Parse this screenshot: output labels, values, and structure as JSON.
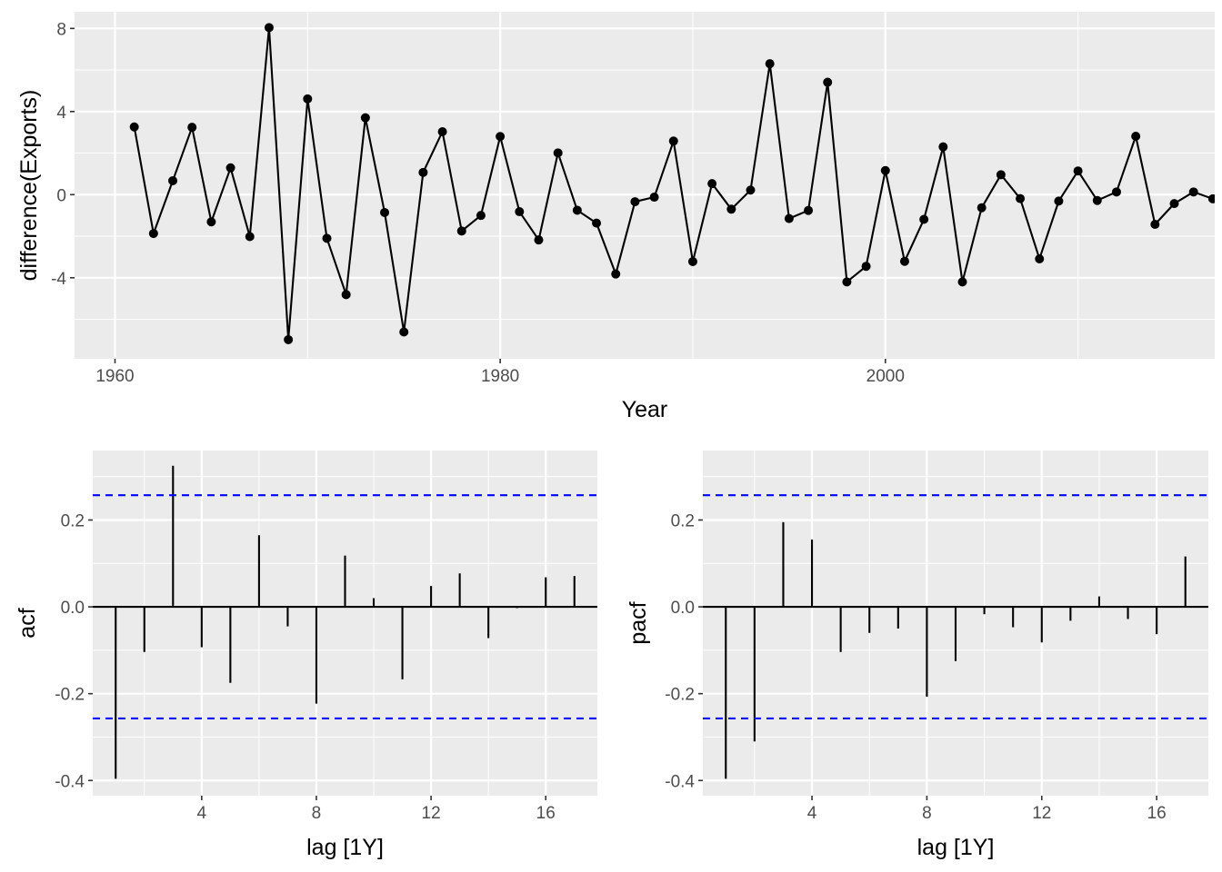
{
  "chart_data": [
    {
      "type": "line",
      "xlabel": "Year",
      "ylabel": "difference(Exports)",
      "xlim": [
        1957.9,
        2017.1
      ],
      "ylim": [
        -7.9,
        8.8
      ],
      "xticks": [
        1960,
        1980,
        2000
      ],
      "xtick_labels": [
        "1960",
        "1980",
        "2000"
      ],
      "yticks": [
        8,
        4,
        0,
        -4
      ],
      "ytick_labels": [
        "8",
        "4",
        "0",
        "-4"
      ],
      "grid": true,
      "markers": true,
      "series": [
        {
          "x": [
            1961,
            1962,
            1963,
            1964,
            1965,
            1966,
            1967,
            1968,
            1969,
            1970,
            1971,
            1972,
            1973,
            1974,
            1975,
            1976,
            1977,
            1978,
            1979,
            1980,
            1981,
            1982,
            1983,
            1984,
            1985,
            1986,
            1987,
            1988,
            1989,
            1990,
            1991,
            1992,
            1993,
            1994,
            1995,
            1996,
            1997,
            1998,
            1999,
            2000,
            2001,
            2002,
            2003,
            2004,
            2005,
            2006,
            2007,
            2008,
            2009,
            2010,
            2011,
            2012,
            2013,
            2014,
            2015,
            2016,
            2017
          ],
          "values": [
            3.26,
            -1.87,
            0.67,
            3.24,
            -1.31,
            1.29,
            -2.02,
            8.04,
            -6.98,
            4.61,
            -2.1,
            -4.81,
            3.7,
            -0.86,
            -6.61,
            1.07,
            3.03,
            -1.75,
            -1.0,
            2.8,
            -0.82,
            -2.18,
            2.01,
            -0.75,
            -1.37,
            -3.82,
            -0.34,
            -0.12,
            2.58,
            -3.22,
            0.53,
            -0.7,
            0.22,
            6.3,
            -1.15,
            -0.76,
            5.41,
            -4.2,
            -3.45,
            1.16,
            -3.21,
            -1.19,
            2.3,
            -4.2,
            -0.63,
            0.96,
            -0.19,
            -3.09,
            -0.31,
            1.14,
            -0.28,
            0.13,
            2.81,
            -1.43,
            -0.43,
            0.13,
            -0.2
          ]
        }
      ]
    },
    {
      "type": "bar",
      "xlabel": "lag [1Y]",
      "ylabel": "acf",
      "xlim": [
        0.2,
        17.8
      ],
      "ylim": [
        -0.435,
        0.36
      ],
      "xticks": [
        4,
        8,
        12,
        16
      ],
      "xtick_labels": [
        "4",
        "8",
        "12",
        "16"
      ],
      "yticks": [
        0.2,
        0.0,
        -0.2,
        -0.4
      ],
      "ytick_labels": [
        "0.2",
        "0.0",
        "-0.2",
        "-0.4"
      ],
      "grid": true,
      "ci": [
        0.257,
        -0.257
      ],
      "ci_color": "#0000ff",
      "series": [
        {
          "x": [
            1,
            2,
            3,
            4,
            5,
            6,
            7,
            8,
            9,
            10,
            11,
            12,
            13,
            14,
            15,
            16,
            17
          ],
          "values": [
            -0.396,
            -0.104,
            0.325,
            -0.093,
            -0.175,
            0.165,
            -0.045,
            -0.223,
            0.118,
            0.02,
            -0.167,
            0.048,
            0.077,
            -0.072,
            -0.003,
            0.068,
            0.071
          ]
        }
      ]
    },
    {
      "type": "bar",
      "xlabel": "lag [1Y]",
      "ylabel": "pacf",
      "xlim": [
        0.2,
        17.8
      ],
      "ylim": [
        -0.435,
        0.36
      ],
      "xticks": [
        4,
        8,
        12,
        16
      ],
      "xtick_labels": [
        "4",
        "8",
        "12",
        "16"
      ],
      "yticks": [
        0.2,
        0.0,
        -0.2,
        -0.4
      ],
      "ytick_labels": [
        "0.2",
        "0.0",
        "-0.2",
        "-0.4"
      ],
      "grid": true,
      "ci": [
        0.257,
        -0.257
      ],
      "ci_color": "#0000ff",
      "series": [
        {
          "x": [
            1,
            2,
            3,
            4,
            5,
            6,
            7,
            8,
            9,
            10,
            11,
            12,
            13,
            14,
            15,
            16,
            17
          ],
          "values": [
            -0.396,
            -0.31,
            0.195,
            0.155,
            -0.104,
            -0.06,
            -0.05,
            -0.207,
            -0.125,
            -0.017,
            -0.047,
            -0.082,
            -0.032,
            0.024,
            -0.028,
            -0.063,
            0.116
          ]
        }
      ]
    }
  ]
}
